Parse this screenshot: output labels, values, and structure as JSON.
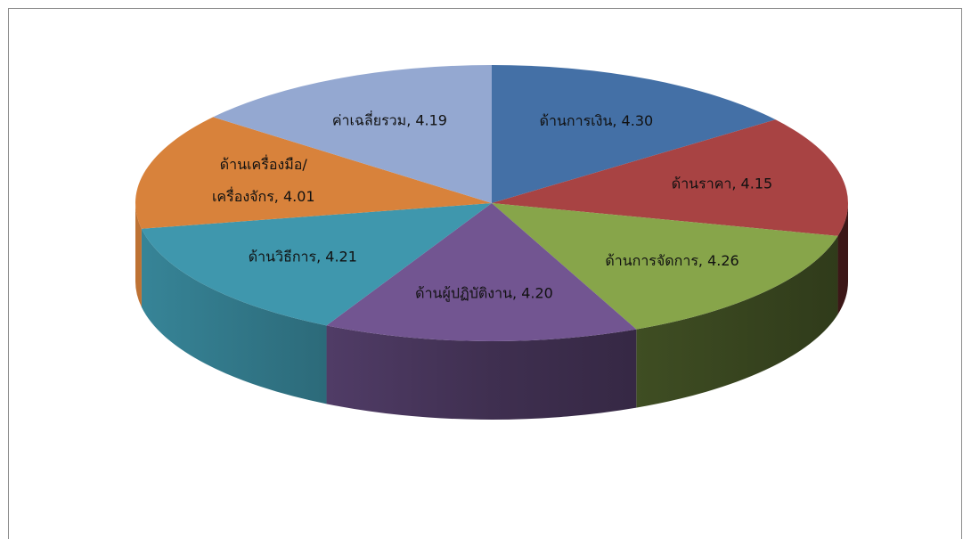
{
  "chart_data": {
    "type": "pie",
    "style": "3d",
    "categories": [
      "ด้านการเงิน",
      "ด้านราคา",
      "ด้านการจัดการ",
      "ด้านผู้ปฏิบัติงาน",
      "ด้านวิธีการ",
      "ด้านเครื่องมือ/เครื่องจักร",
      "ค่าเฉลี่ยรวม"
    ],
    "values": [
      4.3,
      4.15,
      4.26,
      4.2,
      4.21,
      4.01,
      4.19
    ],
    "labels": [
      [
        "ด้านการเงิน, 4.30"
      ],
      [
        "ด้านราคา, 4.15"
      ],
      [
        "ด้านการจัดการ, 4.26"
      ],
      [
        "ด้านผู้ปฏิบัติงาน, 4.20"
      ],
      [
        "ด้านวิธีการ, 4.21"
      ],
      [
        "ด้านเครื่องมือ/",
        "เครื่องจักร, 4.01"
      ],
      [
        "ค่าเฉลี่ยรวม, 4.19"
      ]
    ],
    "colors": [
      "#4470a6",
      "#a84343",
      "#87a54a",
      "#725591",
      "#3f97ad",
      "#d8823b",
      "#94a8d1"
    ],
    "legend": "none"
  }
}
